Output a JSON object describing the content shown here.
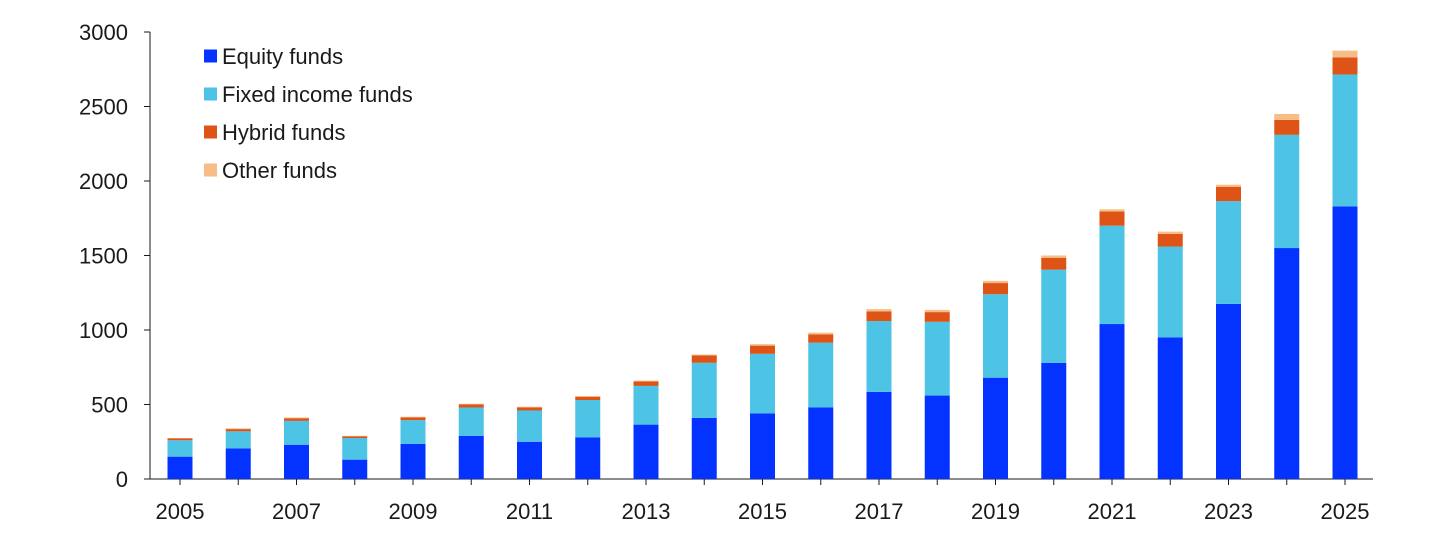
{
  "chart_data": {
    "type": "bar",
    "stacked": true,
    "title": "",
    "xlabel": "",
    "ylabel": "",
    "ylim": [
      0,
      3000
    ],
    "yticks": [
      0,
      500,
      1000,
      1500,
      2000,
      2500,
      3000
    ],
    "xtick_labels": [
      "2005",
      "2007",
      "2009",
      "2011",
      "2013",
      "2015",
      "2017",
      "2019",
      "2021",
      "2023",
      "2025"
    ],
    "grid": false,
    "legend_position": "top-left",
    "categories": [
      "2005",
      "2006",
      "2007",
      "2008",
      "2009",
      "2010",
      "2011",
      "2012",
      "2013",
      "2014",
      "2015",
      "2016",
      "2017",
      "2018",
      "2019",
      "2020",
      "2021",
      "2022",
      "2023",
      "2024",
      "2025"
    ],
    "series": [
      {
        "name": "Equity funds",
        "color": "#0433ff",
        "values": [
          150,
          205,
          230,
          130,
          235,
          290,
          250,
          280,
          365,
          410,
          440,
          480,
          585,
          560,
          680,
          780,
          1040,
          950,
          1175,
          1550,
          1830
        ]
      },
      {
        "name": "Fixed income funds",
        "color": "#4dc3e6",
        "values": [
          110,
          115,
          160,
          145,
          160,
          190,
          210,
          250,
          260,
          370,
          400,
          435,
          475,
          495,
          560,
          625,
          660,
          610,
          690,
          760,
          885
        ]
      },
      {
        "name": "Hybrid funds",
        "color": "#de5316",
        "values": [
          12,
          15,
          18,
          12,
          18,
          20,
          20,
          22,
          30,
          50,
          55,
          55,
          65,
          65,
          75,
          80,
          95,
          85,
          95,
          100,
          115
        ]
      },
      {
        "name": "Other funds",
        "color": "#f7bd86",
        "values": [
          3,
          5,
          5,
          3,
          5,
          5,
          5,
          5,
          5,
          5,
          10,
          12,
          15,
          15,
          15,
          15,
          15,
          15,
          15,
          40,
          45
        ]
      }
    ]
  }
}
